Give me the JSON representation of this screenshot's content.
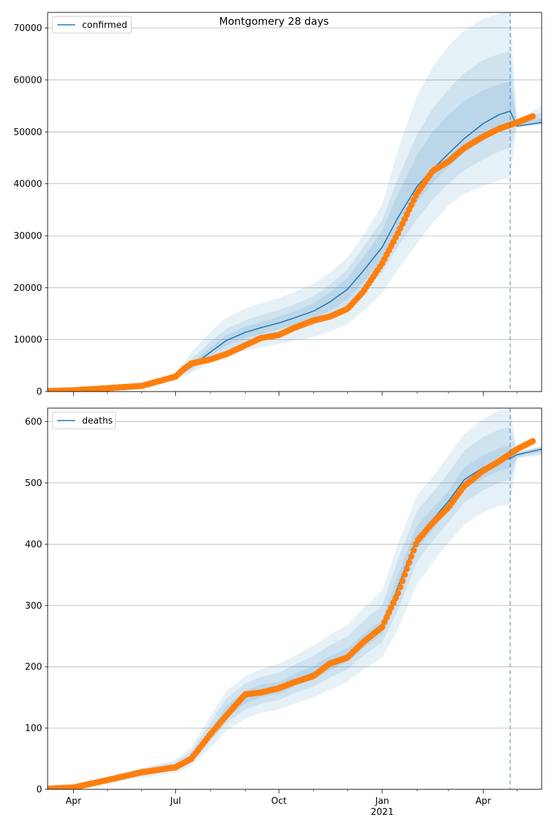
{
  "figure": {
    "title": "Montgomery 28 days"
  },
  "colors": {
    "model": "#1f77b4",
    "observed": "#ff7f0e",
    "band": "#1f77b4",
    "grid": "#b0b0b0",
    "vline": "#1f77b4"
  },
  "shared_x_axis": {
    "type": "date",
    "range": [
      "2020-03-09",
      "2021-05-23"
    ],
    "major_ticks": [
      {
        "date": "2020-04-01",
        "label": "Apr",
        "sublabel": ""
      },
      {
        "date": "2020-07-01",
        "label": "Jul",
        "sublabel": ""
      },
      {
        "date": "2020-10-01",
        "label": "Oct",
        "sublabel": ""
      },
      {
        "date": "2021-01-01",
        "label": "Jan",
        "sublabel": "2021"
      },
      {
        "date": "2021-04-01",
        "label": "Apr",
        "sublabel": ""
      }
    ],
    "minor_ticks": [
      "2020-05-01",
      "2020-06-01",
      "2020-08-01",
      "2020-09-01",
      "2020-11-01",
      "2020-12-01",
      "2021-02-01",
      "2021-03-01",
      "2021-05-01"
    ],
    "forecast_start": "2021-04-25"
  },
  "chart_data": [
    {
      "type": "line",
      "legend": [
        "confirmed"
      ],
      "legend_placement": "top-left",
      "grid": "y",
      "ylim": [
        0,
        73000
      ],
      "yticks": [
        0,
        10000,
        20000,
        30000,
        40000,
        50000,
        60000,
        70000
      ],
      "series": [
        {
          "name": "confirmed",
          "kind": "model-median",
          "x": [
            "2020-03-09",
            "2020-04-01",
            "2020-05-01",
            "2020-06-01",
            "2020-07-01",
            "2020-07-15",
            "2020-08-01",
            "2020-08-15",
            "2020-09-01",
            "2020-09-15",
            "2020-10-01",
            "2020-10-15",
            "2020-11-01",
            "2020-11-15",
            "2020-12-01",
            "2020-12-15",
            "2021-01-01",
            "2021-01-15",
            "2021-02-01",
            "2021-02-15",
            "2021-03-01",
            "2021-03-15",
            "2021-04-01",
            "2021-04-15",
            "2021-04-25",
            "2021-05-01",
            "2021-05-23"
          ],
          "y": [
            0,
            200,
            600,
            1300,
            2800,
            4800,
            7600,
            9800,
            11400,
            12300,
            13200,
            14200,
            15500,
            17200,
            19700,
            23200,
            27800,
            33500,
            39500,
            42800,
            45800,
            48700,
            51600,
            53300,
            54000,
            51100,
            51800
          ]
        },
        {
          "kind": "observed",
          "x": [
            "2020-03-09",
            "2020-04-01",
            "2020-05-01",
            "2020-06-01",
            "2020-07-01",
            "2020-07-08",
            "2020-07-15",
            "2020-08-01",
            "2020-08-15",
            "2020-09-01",
            "2020-09-15",
            "2020-10-01",
            "2020-10-15",
            "2020-11-01",
            "2020-11-15",
            "2020-12-01",
            "2020-12-15",
            "2021-01-01",
            "2021-01-15",
            "2021-02-01",
            "2021-02-15",
            "2021-03-01",
            "2021-03-15",
            "2021-04-01",
            "2021-04-15",
            "2021-05-01",
            "2021-05-15"
          ],
          "y": [
            100,
            250,
            650,
            1100,
            2900,
            4300,
            5400,
            6200,
            7200,
            8900,
            10300,
            10900,
            12300,
            13700,
            14400,
            15900,
            19200,
            24700,
            30500,
            38200,
            42500,
            44300,
            46900,
            49100,
            50600,
            51800,
            53000
          ]
        }
      ],
      "bands": [
        {
          "level": "outer",
          "lower": [
            0,
            150,
            500,
            1050,
            2300,
            3600,
            5400,
            6800,
            7900,
            8500,
            9200,
            9800,
            10500,
            11500,
            13000,
            15500,
            19000,
            23500,
            28500,
            32500,
            35800,
            38000,
            39600,
            40700,
            41200,
            51000,
            51300
          ],
          "upper": [
            0,
            250,
            700,
            1600,
            3500,
            7500,
            11500,
            14200,
            16000,
            17000,
            18000,
            19200,
            20800,
            22800,
            25800,
            30000,
            36000,
            46500,
            57000,
            62500,
            66500,
            69500,
            71800,
            72800,
            73000,
            52300,
            55000
          ]
        },
        {
          "level": "middle",
          "lower": [
            0,
            170,
            550,
            1150,
            2550,
            4100,
            6300,
            8000,
            9300,
            10100,
            10900,
            11700,
            12800,
            14000,
            16000,
            18900,
            23000,
            28000,
            33200,
            37000,
            40000,
            42600,
            44700,
            46200,
            47000,
            51100,
            51500
          ],
          "upper": [
            0,
            230,
            650,
            1450,
            3100,
            6300,
            9600,
            12000,
            13700,
            14700,
            15700,
            16800,
            18400,
            20500,
            23500,
            27700,
            33000,
            41000,
            49500,
            54500,
            58200,
            61300,
            63800,
            65000,
            65500,
            52100,
            53800
          ]
        },
        {
          "level": "inner",
          "lower": [
            0,
            185,
            580,
            1230,
            2700,
            4500,
            6900,
            8900,
            10300,
            11100,
            12000,
            12900,
            14100,
            15500,
            17700,
            21000,
            25500,
            31000,
            36500,
            40200,
            43200,
            46000,
            48300,
            50000,
            50800,
            51100,
            51700
          ],
          "upper": [
            0,
            215,
            620,
            1370,
            2900,
            5600,
            8500,
            10800,
            12500,
            13400,
            14400,
            15500,
            17000,
            19000,
            21900,
            25800,
            31000,
            38000,
            45500,
            50000,
            53300,
            55900,
            58000,
            59200,
            59700,
            51800,
            52600
          ]
        }
      ]
    },
    {
      "type": "line",
      "legend": [
        "deaths"
      ],
      "legend_placement": "top-left",
      "grid": "y",
      "ylim": [
        0,
        622
      ],
      "yticks": [
        0,
        100,
        200,
        300,
        400,
        500,
        600
      ],
      "series": [
        {
          "name": "deaths",
          "kind": "model-median",
          "x": [
            "2020-03-09",
            "2020-04-01",
            "2020-05-01",
            "2020-06-01",
            "2020-07-01",
            "2020-07-15",
            "2020-08-01",
            "2020-08-15",
            "2020-09-01",
            "2020-09-15",
            "2020-10-01",
            "2020-10-15",
            "2020-11-01",
            "2020-11-15",
            "2020-12-01",
            "2020-12-15",
            "2021-01-01",
            "2021-01-15",
            "2021-02-01",
            "2021-02-15",
            "2021-03-01",
            "2021-03-15",
            "2021-04-01",
            "2021-04-15",
            "2021-04-25",
            "2021-05-01",
            "2021-05-23"
          ],
          "y": [
            0,
            2,
            15,
            27,
            37,
            50,
            90,
            125,
            150,
            160,
            165,
            178,
            190,
            205,
            218,
            240,
            263,
            330,
            410,
            440,
            470,
            505,
            525,
            535,
            540,
            546,
            555
          ]
        },
        {
          "kind": "observed",
          "x": [
            "2020-03-09",
            "2020-04-01",
            "2020-05-01",
            "2020-06-01",
            "2020-07-01",
            "2020-07-15",
            "2020-08-01",
            "2020-08-15",
            "2020-09-01",
            "2020-09-15",
            "2020-10-01",
            "2020-10-15",
            "2020-11-01",
            "2020-11-15",
            "2020-12-01",
            "2020-12-15",
            "2021-01-01",
            "2021-01-15",
            "2021-02-01",
            "2021-02-15",
            "2021-03-01",
            "2021-03-15",
            "2021-04-01",
            "2021-04-15",
            "2021-05-01",
            "2021-05-15"
          ],
          "y": [
            1,
            3,
            15,
            28,
            36,
            50,
            90,
            120,
            155,
            158,
            165,
            175,
            185,
            205,
            215,
            240,
            265,
            320,
            405,
            435,
            460,
            495,
            520,
            535,
            555,
            568
          ]
        }
      ],
      "bands": [
        {
          "level": "outer",
          "lower": [
            0,
            1,
            10,
            19,
            27,
            38,
            68,
            95,
            115,
            125,
            130,
            140,
            150,
            162,
            175,
            195,
            215,
            262,
            335,
            370,
            402,
            432,
            452,
            462,
            466,
            540,
            545
          ],
          "upper": [
            0,
            3,
            20,
            35,
            48,
            68,
            120,
            160,
            185,
            196,
            205,
            218,
            235,
            252,
            268,
            295,
            325,
            400,
            480,
            510,
            545,
            580,
            605,
            618,
            622,
            550,
            560
          ]
        },
        {
          "level": "middle",
          "lower": [
            0,
            1,
            12,
            22,
            31,
            43,
            78,
            108,
            130,
            140,
            146,
            157,
            168,
            182,
            196,
            218,
            240,
            292,
            372,
            405,
            436,
            468,
            488,
            500,
            505,
            541,
            548
          ]
        },
        {
          "level": "inner",
          "lower": [
            0,
            2,
            13,
            24,
            34,
            47,
            84,
            116,
            140,
            150,
            156,
            168,
            180,
            194,
            208,
            230,
            253,
            312,
            392,
            423,
            455,
            488,
            508,
            520,
            524,
            543,
            551
          ],
          "upper": [
            0,
            2,
            17,
            30,
            41,
            56,
            97,
            135,
            161,
            171,
            175,
            189,
            201,
            217,
            230,
            253,
            276,
            350,
            430,
            458,
            487,
            525,
            545,
            556,
            562,
            549,
            558
          ]
        }
      ]
    }
  ]
}
